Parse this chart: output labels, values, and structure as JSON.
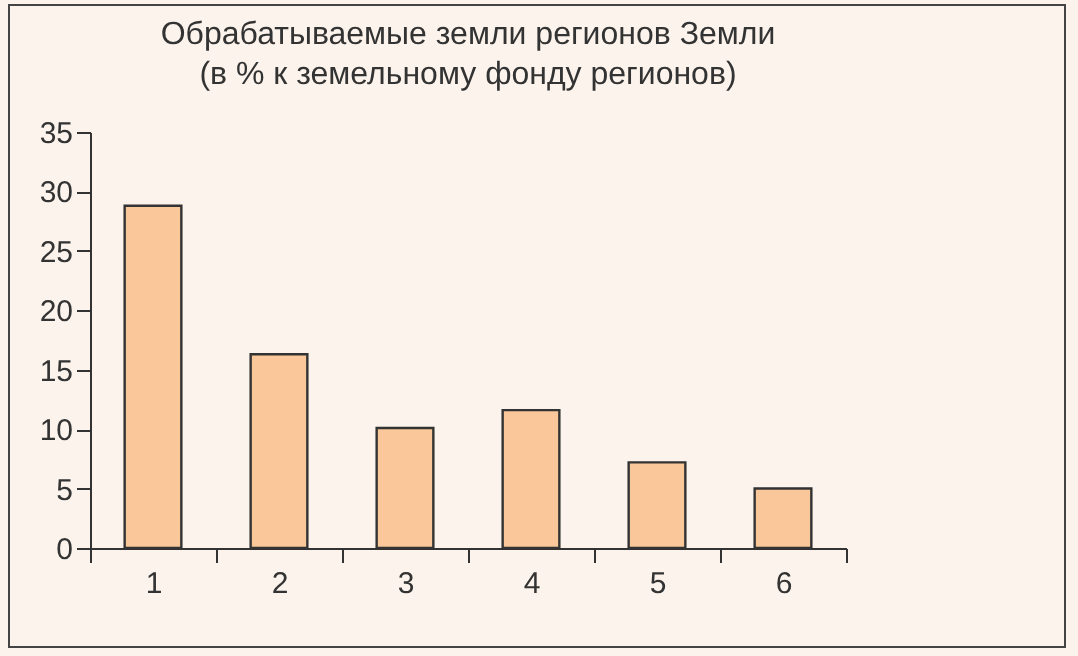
{
  "chart_data": {
    "type": "bar",
    "title": [
      "Обрабатываемые земли регионов Земли",
      "(в % к земельному фонду регионов)"
    ],
    "categories": [
      "1",
      "2",
      "3",
      "4",
      "5",
      "6"
    ],
    "values": [
      28.8,
      16.3,
      10.1,
      11.6,
      7.2,
      5.0
    ],
    "color": "#f9c79a",
    "ylim": [
      0,
      35
    ],
    "yticks": [
      0,
      5,
      10,
      15,
      20,
      25,
      30,
      35
    ],
    "grid": false
  }
}
